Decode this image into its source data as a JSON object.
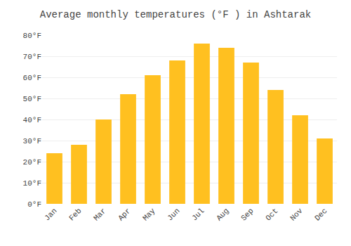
{
  "chart_data": {
    "type": "bar",
    "title": "Average monthly temperatures (°F ) in Ashtarak",
    "categories": [
      "Jan",
      "Feb",
      "Mar",
      "Apr",
      "May",
      "Jun",
      "Jul",
      "Aug",
      "Sep",
      "Oct",
      "Nov",
      "Dec"
    ],
    "values": [
      24,
      28,
      40,
      52,
      61,
      68,
      76,
      74,
      67,
      54,
      42,
      31
    ],
    "color": "#FFC020",
    "ylim": [
      0,
      80
    ],
    "yticks": [
      {
        "value": 0,
        "label": "0°F"
      },
      {
        "value": 10,
        "label": "10°F"
      },
      {
        "value": 20,
        "label": "20°F"
      },
      {
        "value": 30,
        "label": "30°F"
      },
      {
        "value": 40,
        "label": "40°F"
      },
      {
        "value": 50,
        "label": "50°F"
      },
      {
        "value": 60,
        "label": "60°F"
      },
      {
        "value": 70,
        "label": "70°F"
      },
      {
        "value": 80,
        "label": "80°F"
      }
    ],
    "grid": true
  }
}
